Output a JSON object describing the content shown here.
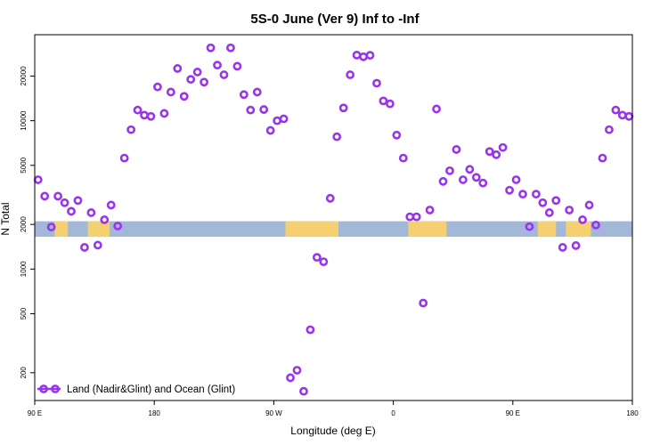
{
  "chart_data": {
    "type": "scatter",
    "title": "5S-0 June (Ver 9)   Inf to -Inf",
    "xlabel": "Longitude (deg E)",
    "ylabel": "N Total",
    "y_scale": "log",
    "xlim": [
      0,
      360
    ],
    "ylim": [
      130,
      38000
    ],
    "x_ticks": [
      {
        "value": 0,
        "label": "90 E"
      },
      {
        "value": 72,
        "label": "180"
      },
      {
        "value": 144,
        "label": "90 W"
      },
      {
        "value": 216,
        "label": "0"
      },
      {
        "value": 288,
        "label": "90 E"
      },
      {
        "value": 360,
        "label": "180"
      }
    ],
    "y_ticks": [
      {
        "value": 200,
        "label": "200"
      },
      {
        "value": 500,
        "label": "500"
      },
      {
        "value": 1000,
        "label": "1000"
      },
      {
        "value": 2000,
        "label": "2000"
      },
      {
        "value": 5000,
        "label": "5000"
      },
      {
        "value": 10000,
        "label": "10000"
      },
      {
        "value": 20000,
        "label": "20000"
      }
    ],
    "colors": {
      "marker": "#9933ee",
      "ocean_band": "#a3b8d8",
      "land_band": "#f5d070",
      "axis": "#000000"
    },
    "band": {
      "y_low": 1650,
      "y_high": 2100
    },
    "land_segments": [
      [
        12,
        20
      ],
      [
        32,
        45
      ],
      [
        151,
        183
      ],
      [
        225,
        248
      ],
      [
        303,
        314
      ],
      [
        320,
        335
      ]
    ],
    "series": [
      {
        "name": "Land (Nadir&Glint) and Ocean (Glint)",
        "x": [
          2,
          6,
          10,
          14,
          18,
          22,
          26,
          30,
          34,
          38,
          42,
          46,
          50,
          54,
          58,
          62,
          66,
          70,
          74,
          78,
          82,
          86,
          90,
          94,
          98,
          102,
          106,
          110,
          114,
          118,
          122,
          126,
          130,
          134,
          138,
          142,
          146,
          150,
          154,
          158,
          162,
          166,
          170,
          174,
          178,
          182,
          186,
          190,
          194,
          198,
          202,
          206,
          210,
          214,
          218,
          222,
          226,
          230,
          234,
          238,
          242,
          246,
          250,
          254,
          258,
          262,
          266,
          270,
          274,
          278,
          282,
          286,
          290,
          294,
          298,
          302,
          306,
          310,
          314,
          318,
          322,
          326,
          330,
          334,
          338,
          342,
          346,
          350,
          354,
          358
        ],
        "y": [
          4000,
          3100,
          1920,
          3100,
          2800,
          2450,
          2900,
          1400,
          2400,
          1450,
          2150,
          2700,
          1950,
          5600,
          8700,
          11800,
          10900,
          10700,
          16900,
          11200,
          15600,
          22500,
          14600,
          19000,
          21300,
          18200,
          31000,
          23700,
          20400,
          31000,
          23300,
          15000,
          11800,
          15600,
          11900,
          8600,
          10000,
          10300,
          185,
          208,
          150,
          390,
          1200,
          1120,
          3000,
          7800,
          12200,
          20400,
          27700,
          27000,
          27600,
          17900,
          13600,
          13000,
          8000,
          5600,
          2250,
          2250,
          590,
          2500,
          12000,
          3900,
          4600,
          6400,
          4000,
          4700,
          4150,
          3800,
          6200,
          5900,
          6600,
          3400,
          4000,
          3200,
          1930,
          3200,
          2800,
          2400,
          2900,
          1400,
          2500,
          1440,
          2150,
          2700,
          1980,
          5600,
          8700,
          11800,
          10900,
          10700
        ]
      }
    ],
    "legend": {
      "position": "bottom-left",
      "label": "Land (Nadir&Glint) and Ocean (Glint)"
    }
  }
}
